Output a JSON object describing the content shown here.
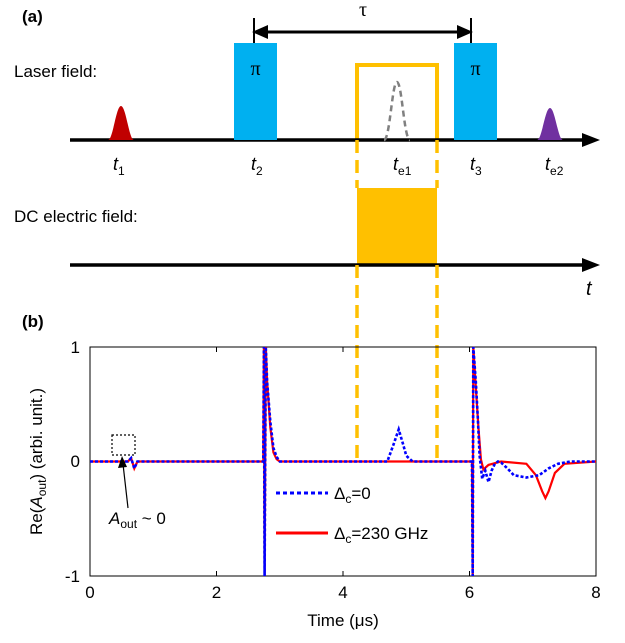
{
  "panel_a": {
    "label": "(a)",
    "tau": "τ",
    "laser_label": "Laser field:",
    "dc_label": "DC electric field:",
    "pi": "π",
    "t_sym": "t",
    "t_subs": [
      "1",
      "2",
      "e1",
      "3",
      "e2"
    ],
    "axis_t": "t",
    "colors": {
      "red_pulse": "#c00000",
      "pi_box": "#00b0f0",
      "dc_box": "#ffc000",
      "purple_pulse": "#7030a0",
      "echo_dash": "#808080"
    }
  },
  "panel_b": {
    "label": "(b)",
    "annotation_A": "A",
    "annotation_sub": "out",
    "annotation_rest": " ~ 0",
    "legend": [
      {
        "label_main": "Δ",
        "label_sub": "c",
        "label_rest": "=0",
        "color": "#0000ff",
        "style": "dotted"
      },
      {
        "label_main": "Δ",
        "label_sub": "c",
        "label_rest": "=230 GHz",
        "color": "#ff0000",
        "style": "solid"
      }
    ]
  },
  "chart_data": {
    "type": "line",
    "xlabel": "Time (μs)",
    "ylabel_pre": "Re(",
    "ylabel_A": "A",
    "ylabel_sub": "out",
    "ylabel_post": ") (arbi. unit.)",
    "xlim": [
      0,
      8
    ],
    "ylim": [
      -1,
      1
    ],
    "xticks": [
      "0",
      "2",
      "4",
      "6",
      "8"
    ],
    "yticks": [
      "-1",
      "0",
      "1"
    ],
    "grid": false,
    "series": [
      {
        "name": "Δc=0",
        "color": "#0000ff",
        "x": [
          0,
          0.6,
          0.65,
          0.7,
          0.75,
          2.74,
          2.75,
          2.76,
          2.78,
          2.8,
          2.85,
          2.9,
          2.95,
          3.0,
          3.1,
          4.7,
          4.8,
          4.88,
          4.95,
          5.0,
          5.1,
          6.04,
          6.05,
          6.06,
          6.1,
          6.13,
          6.16,
          6.2,
          6.25,
          6.3,
          6.35,
          6.4,
          6.45,
          6.5,
          6.6,
          6.7,
          6.9,
          7.1,
          7.25,
          7.4,
          7.6,
          8.0
        ],
        "y": [
          0,
          0,
          0.03,
          -0.06,
          0,
          0,
          1.0,
          -1.0,
          1.0,
          0.7,
          0.35,
          0.12,
          0.04,
          0,
          0,
          0,
          0.15,
          0.28,
          0.15,
          0.05,
          0,
          0,
          -1.0,
          1.0,
          0.7,
          0.4,
          0.05,
          -0.15,
          -0.08,
          -0.18,
          -0.08,
          -0.02,
          0,
          -0.01,
          -0.06,
          -0.12,
          -0.14,
          -0.12,
          -0.06,
          -0.02,
          0,
          0
        ]
      },
      {
        "name": "Δc=230 GHz",
        "color": "#ff0000",
        "x": [
          0,
          0.6,
          0.65,
          0.7,
          0.75,
          2.74,
          2.75,
          2.76,
          2.78,
          2.8,
          2.85,
          2.9,
          2.95,
          3.0,
          3.1,
          6.04,
          6.05,
          6.06,
          6.1,
          6.14,
          6.18,
          6.22,
          6.3,
          6.5,
          6.9,
          7.05,
          7.15,
          7.2,
          7.25,
          7.35,
          7.5,
          8.0
        ],
        "y": [
          0,
          0,
          0.03,
          -0.06,
          0,
          0,
          1.0,
          -1.0,
          1.0,
          0.7,
          0.3,
          0.08,
          0.02,
          0,
          0,
          0,
          -1.0,
          1.0,
          0.65,
          0.3,
          0.02,
          -0.07,
          -0.03,
          0,
          -0.02,
          -0.12,
          -0.26,
          -0.32,
          -0.26,
          -0.1,
          -0.02,
          0
        ]
      }
    ]
  }
}
